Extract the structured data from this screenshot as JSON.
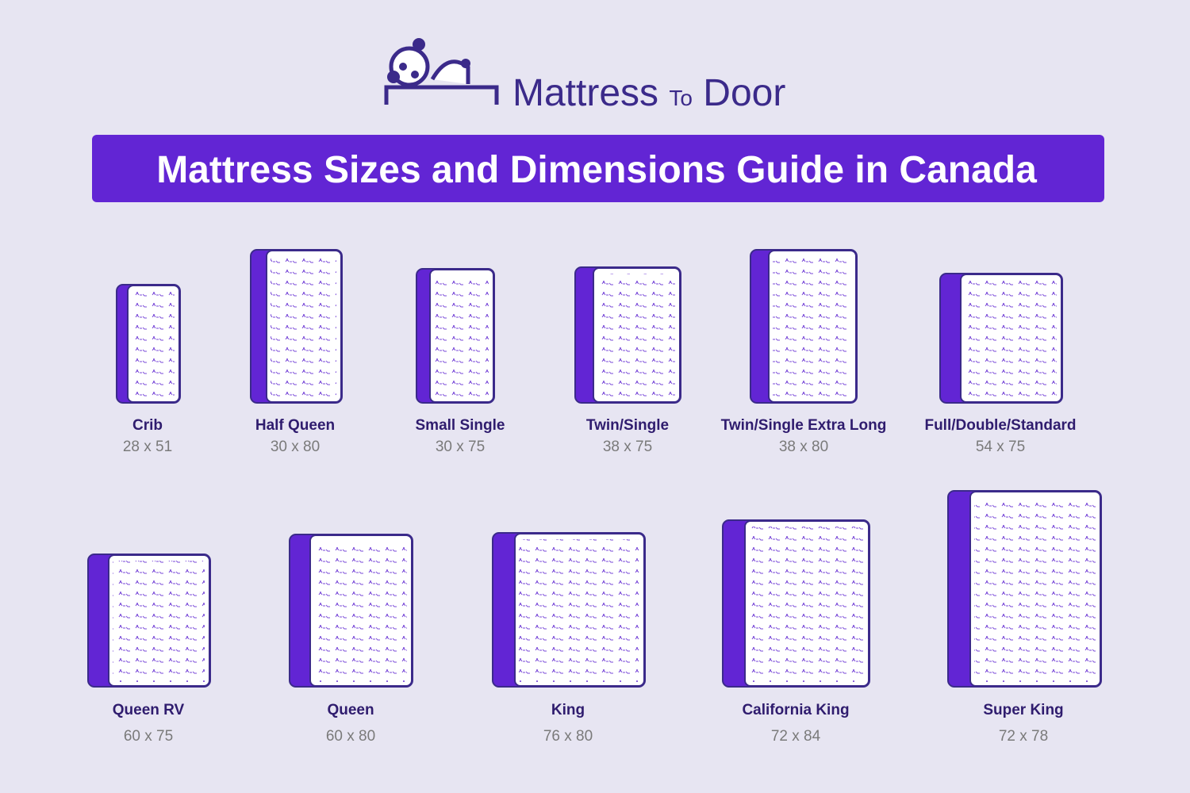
{
  "header": {
    "logo": {
      "word1": "Mattress",
      "word2": "To",
      "word3": "Door"
    },
    "title": "Mattress Sizes and Dimensions Guide in Canada"
  },
  "mattresses": [
    {
      "name": "Crib",
      "size": "28 x 51"
    },
    {
      "name": "Half Queen",
      "size": "30 x 80"
    },
    {
      "name": "Small Single",
      "size": "30 x 75"
    },
    {
      "name": "Twin/Single",
      "size": "38 x 75"
    },
    {
      "name": "Twin/Single Extra Long",
      "size": "38 x 80"
    },
    {
      "name": "Full/Double/Standard",
      "size": "54 x 75"
    },
    {
      "name": "Queen RV",
      "size": "60 x 75"
    },
    {
      "name": "Queen",
      "size": "60 x 80"
    },
    {
      "name": "King",
      "size": "76 x 80"
    },
    {
      "name": "California King",
      "size": "72 x 84"
    },
    {
      "name": "Super King",
      "size": "72 x 78"
    }
  ]
}
